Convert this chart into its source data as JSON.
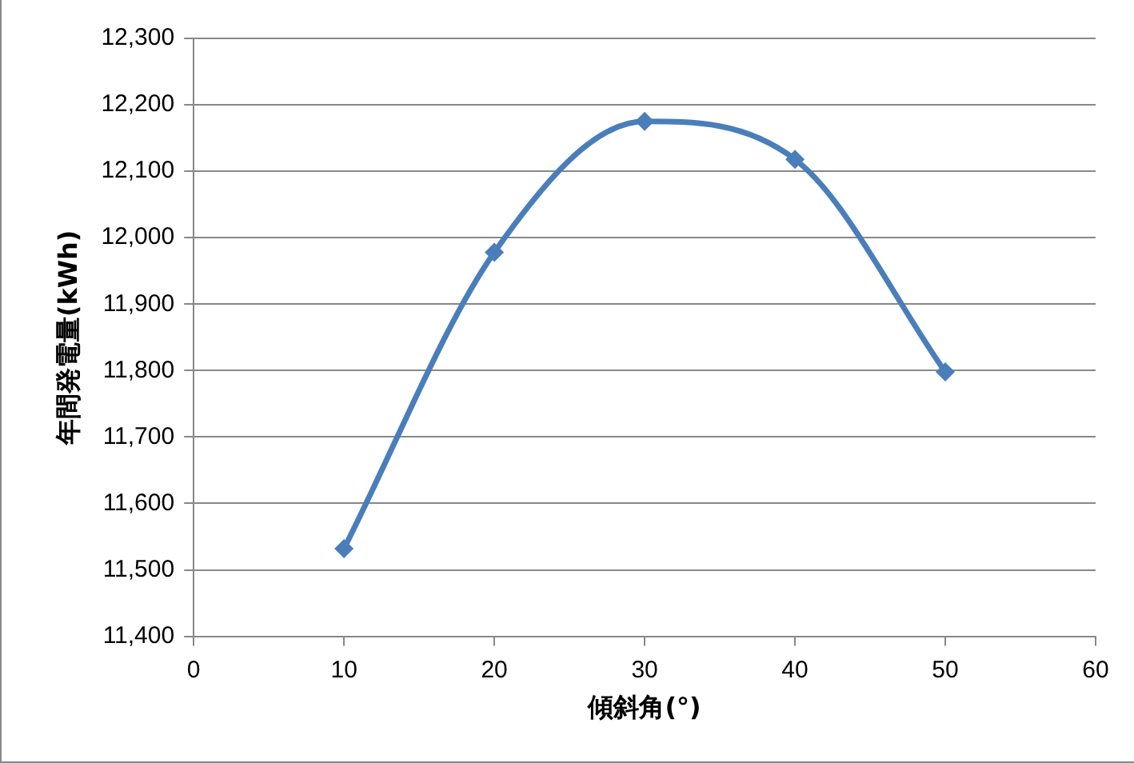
{
  "chart_data": {
    "type": "line",
    "xlabel": "傾斜角(°)",
    "ylabel": "年間発電量(kWh)",
    "x": [
      10,
      20,
      30,
      40,
      50
    ],
    "series": [
      {
        "color": "#4a7ebb",
        "values": [
          11532,
          11978,
          12175,
          12118,
          11798
        ]
      }
    ],
    "xlim": [
      0,
      60
    ],
    "xticks": [
      0,
      10,
      20,
      30,
      40,
      50,
      60
    ],
    "ylim": [
      11400,
      12300
    ],
    "yticks": [
      {
        "value": 11400,
        "label": "11,400"
      },
      {
        "value": 11500,
        "label": "11,500"
      },
      {
        "value": 11600,
        "label": "11,600"
      },
      {
        "value": 11700,
        "label": "11,700"
      },
      {
        "value": 11800,
        "label": "11,800"
      },
      {
        "value": 11900,
        "label": "11,900"
      },
      {
        "value": 12000,
        "label": "12,000"
      },
      {
        "value": 12100,
        "label": "12,100"
      },
      {
        "value": 12200,
        "label": "12,200"
      },
      {
        "value": 12300,
        "label": "12,300"
      }
    ],
    "grid": "y",
    "legend": false,
    "marker": "diamond",
    "line_style": "solid"
  }
}
